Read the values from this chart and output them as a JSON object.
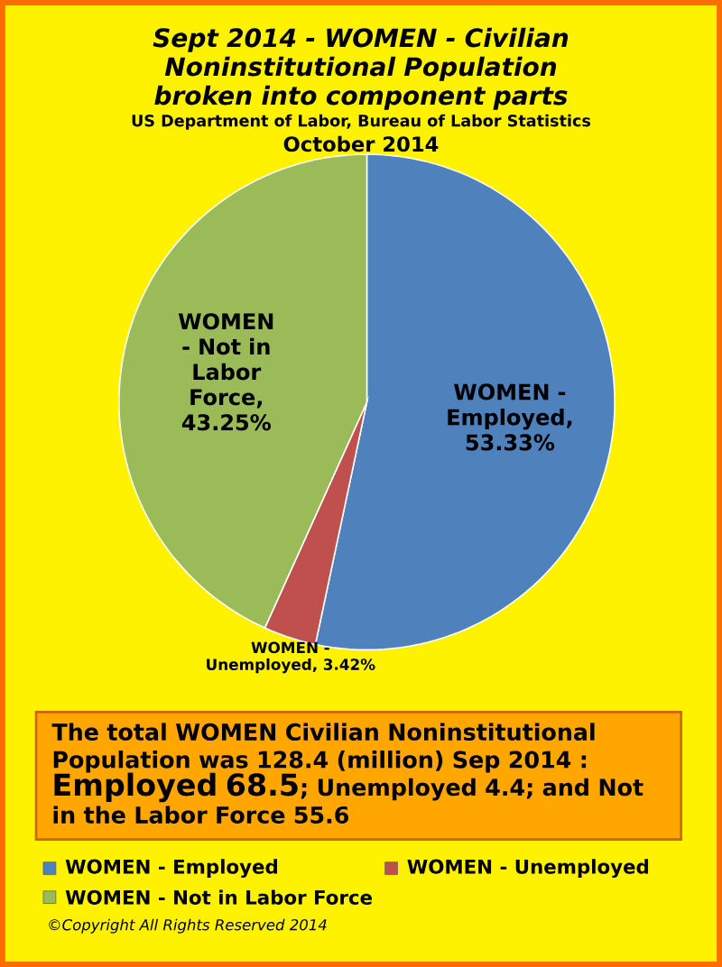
{
  "chart_data": {
    "type": "pie",
    "title": "Sept 2014 -  WOMEN - Civilian Noninstitutional  Population broken into component parts",
    "subtitle": "US Department of Labor, Bureau of Labor Statistics",
    "categories": [
      "WOMEN - Employed",
      "WOMEN - Unemployed",
      "WOMEN - Not in Labor Force"
    ],
    "values": [
      53.33,
      3.42,
      43.25
    ],
    "colors": [
      "#4f81bd",
      "#c0504d",
      "#9bbb59"
    ],
    "value_labels": [
      "WOMEN - Employed, 53.33%",
      "WOMEN - Unemployed, 3.42%",
      "WOMEN - Not in Labor Force, 43.25%"
    ],
    "legend": "bottom",
    "annotations": [
      "October 2014",
      "The total WOMEN Civilian Noninstitutional Population was 128.4 (million) Sep 2014 :",
      "Employed 68.5",
      "; Unemployed 4.4; and Not in the Labor Force 55.6",
      "©Copyright All Rights Reserved 2014"
    ]
  }
}
